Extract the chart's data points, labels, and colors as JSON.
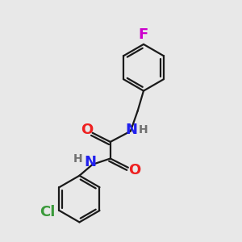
{
  "background_color": "#e8e8e8",
  "bond_color": "#1a1a1a",
  "N_color": "#2020ee",
  "O_color": "#ee2020",
  "F_color": "#cc00cc",
  "Cl_color": "#3a9a3a",
  "H_color": "#707070",
  "line_width": 1.6,
  "dbo": 0.012,
  "font_size_atom": 13,
  "font_size_H": 10,
  "xlim": [
    0.0,
    1.0
  ],
  "ylim": [
    0.0,
    1.0
  ]
}
